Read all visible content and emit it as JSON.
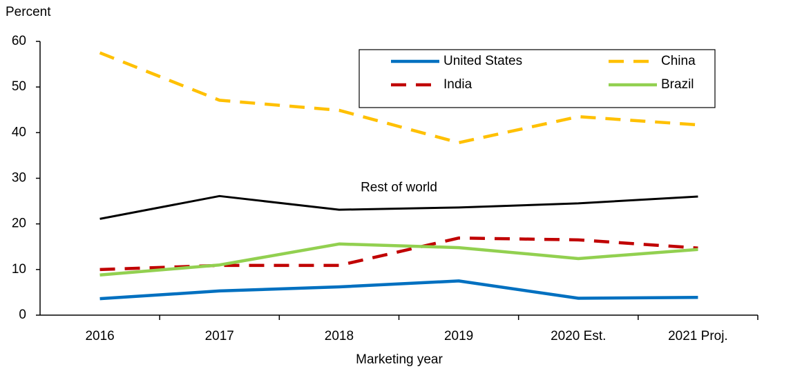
{
  "chart_data": {
    "type": "line",
    "y_label": "Percent",
    "x_label": "Marketing year",
    "categories": [
      "2016",
      "2017",
      "2018",
      "2019",
      "2020 Est.",
      "2021 Proj."
    ],
    "ylim": [
      0,
      60
    ],
    "yticks": [
      0,
      10,
      20,
      30,
      40,
      50,
      60
    ],
    "grid": false,
    "legend": "top-right",
    "series": [
      {
        "name": "United States",
        "color": "#0070c0",
        "dashed": false,
        "in_legend": true,
        "values": [
          3.6,
          5.3,
          6.2,
          7.5,
          3.7,
          3.9
        ]
      },
      {
        "name": "China",
        "color": "#ffc000",
        "dashed": true,
        "in_legend": true,
        "values": [
          57.5,
          47.1,
          44.9,
          37.8,
          43.5,
          41.7
        ]
      },
      {
        "name": "India",
        "color": "#c00000",
        "dashed": true,
        "in_legend": true,
        "values": [
          10.0,
          10.9,
          10.9,
          16.9,
          16.5,
          14.7
        ]
      },
      {
        "name": "Brazil",
        "color": "#92d050",
        "dashed": false,
        "in_legend": true,
        "values": [
          8.8,
          11.0,
          15.6,
          14.8,
          12.4,
          14.4
        ]
      },
      {
        "name": "Rest of world",
        "color": "#000000",
        "dashed": false,
        "in_legend": false,
        "values": [
          21.1,
          26.1,
          23.1,
          23.6,
          24.5,
          26.0
        ]
      }
    ]
  }
}
